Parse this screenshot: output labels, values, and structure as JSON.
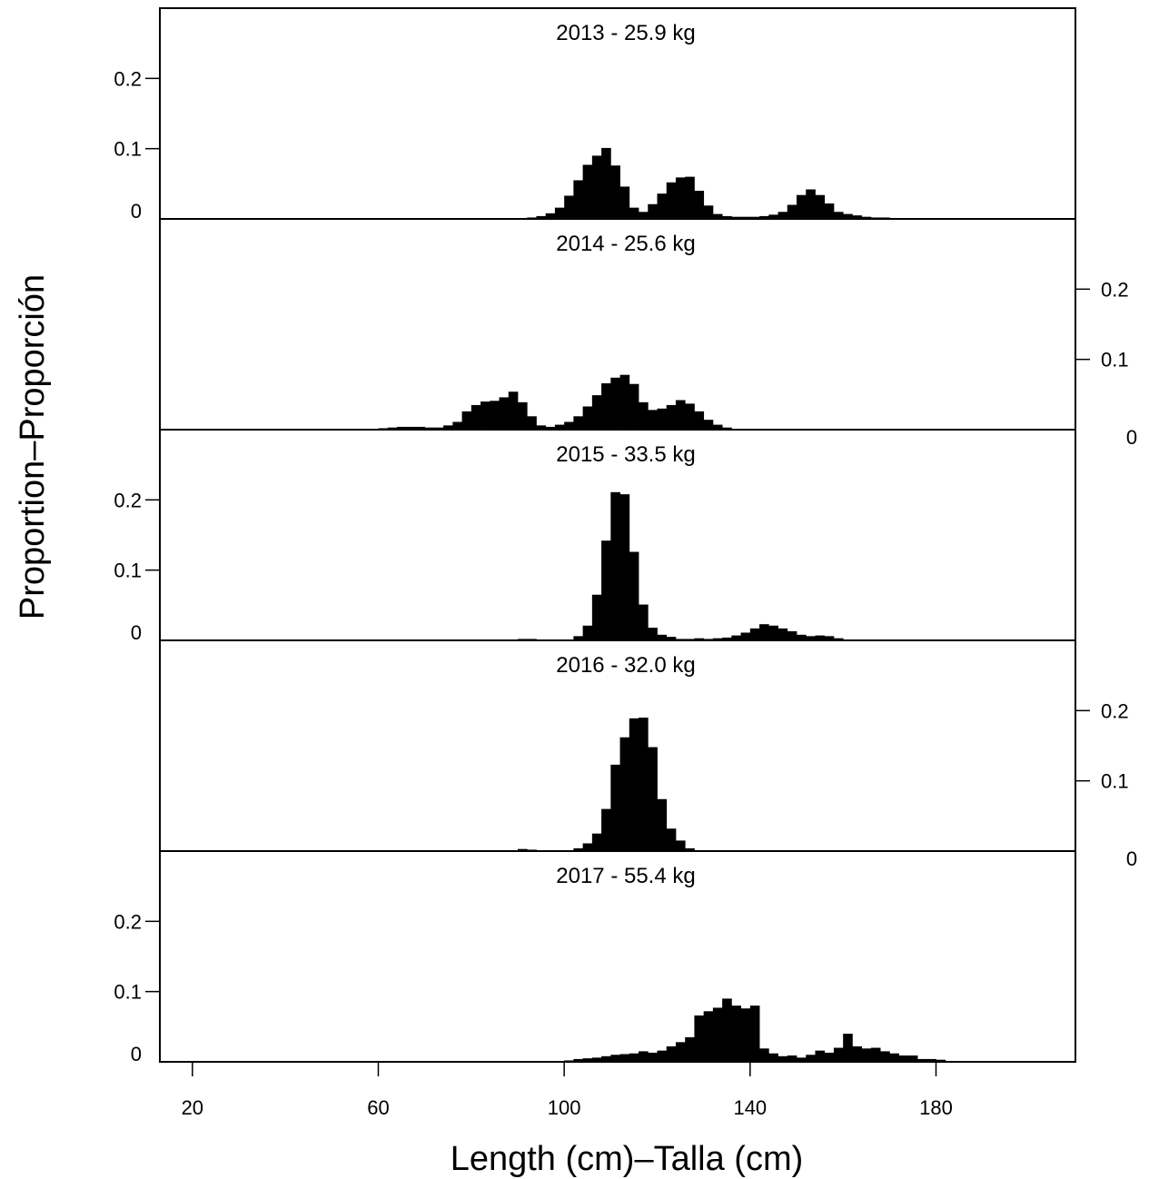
{
  "chart_data": {
    "type": "bar",
    "xlabel": "Length (cm)–Talla (cm)",
    "ylabel": "Proportion–Proporción",
    "xlim": [
      13,
      210
    ],
    "x_ticks": [
      20,
      60,
      100,
      140,
      180
    ],
    "ylim": [
      0,
      0.3
    ],
    "y_ticks": [
      0,
      0.1,
      0.2
    ],
    "bin_width": 2,
    "bin_start": 20,
    "panels": [
      {
        "title": "2013 - 25.9 kg",
        "y_axis_side": "left",
        "values": [
          0.001,
          0.001,
          0.001,
          0.001,
          0.001,
          0.001,
          0.001,
          0.001,
          0.001,
          0.001,
          0.001,
          0.001,
          0.001,
          0.001,
          0.001,
          0.001,
          0.001,
          0.001,
          0.001,
          0.001,
          0.001,
          0.001,
          0.001,
          0.001,
          0.001,
          0.001,
          0.001,
          0.001,
          0.001,
          0.001,
          0.001,
          0.001,
          0.001,
          0.001,
          0.001,
          0.001,
          0.002,
          0.004,
          0.008,
          0.016,
          0.033,
          0.055,
          0.077,
          0.09,
          0.101,
          0.076,
          0.046,
          0.016,
          0.01,
          0.021,
          0.036,
          0.052,
          0.059,
          0.06,
          0.04,
          0.019,
          0.007,
          0.004,
          0.003,
          0.003,
          0.003,
          0.004,
          0.006,
          0.01,
          0.02,
          0.034,
          0.042,
          0.034,
          0.022,
          0.01,
          0.007,
          0.005,
          0.003,
          0.002,
          0.002,
          0.001,
          0.001,
          0.001,
          0.001,
          0.001,
          0.001,
          0.001,
          0.001,
          0.001,
          0.001,
          0.001,
          0.001,
          0.001,
          0.001,
          0.001,
          0.001
        ]
      },
      {
        "title": "2014 - 25.6 kg",
        "y_axis_side": "right",
        "values": [
          0.001,
          0.001,
          0.001,
          0.001,
          0.001,
          0.001,
          0.001,
          0.001,
          0.001,
          0.001,
          0.001,
          0.001,
          0.001,
          0.001,
          0.001,
          0.001,
          0.001,
          0.001,
          0.001,
          0.001,
          0.002,
          0.003,
          0.004,
          0.004,
          0.004,
          0.003,
          0.003,
          0.006,
          0.011,
          0.026,
          0.035,
          0.04,
          0.041,
          0.046,
          0.054,
          0.039,
          0.019,
          0.006,
          0.004,
          0.007,
          0.011,
          0.019,
          0.033,
          0.049,
          0.066,
          0.074,
          0.078,
          0.065,
          0.039,
          0.028,
          0.03,
          0.035,
          0.042,
          0.037,
          0.026,
          0.014,
          0.007,
          0.003,
          0.001,
          0.001,
          0.001,
          0.001,
          0.001,
          0.001,
          0.001,
          0.001,
          0.001,
          0.001,
          0.001,
          0.001,
          0.001,
          0.001,
          0.001,
          0.001,
          0.001,
          0.001,
          0.001,
          0.001,
          0.001,
          0.001,
          0.001,
          0.001,
          0.001,
          0.001,
          0.001,
          0.001,
          0.001,
          0.001,
          0.001,
          0.001,
          0.001
        ]
      },
      {
        "title": "2015 - 33.5 kg",
        "y_axis_side": "left",
        "values": [
          0.001,
          0.001,
          0.001,
          0.001,
          0.001,
          0.001,
          0.001,
          0.001,
          0.001,
          0.001,
          0.001,
          0.001,
          0.001,
          0.001,
          0.001,
          0.001,
          0.001,
          0.001,
          0.001,
          0.001,
          0.001,
          0.001,
          0.001,
          0.001,
          0.001,
          0.001,
          0.001,
          0.001,
          0.001,
          0.001,
          0.001,
          0.001,
          0.001,
          0.001,
          0.001,
          0.002,
          0.002,
          0.001,
          0.001,
          0.001,
          0.001,
          0.006,
          0.021,
          0.065,
          0.142,
          0.211,
          0.208,
          0.126,
          0.051,
          0.018,
          0.008,
          0.005,
          0.002,
          0.002,
          0.003,
          0.002,
          0.003,
          0.004,
          0.007,
          0.011,
          0.017,
          0.023,
          0.021,
          0.017,
          0.013,
          0.008,
          0.006,
          0.007,
          0.006,
          0.003,
          0.001,
          0.001,
          0.001,
          0.001,
          0.001,
          0.001,
          0.001,
          0.001,
          0.001,
          0.001,
          0.001,
          0.001,
          0.001,
          0.001,
          0.001,
          0.001,
          0.001,
          0.001,
          0.001,
          0.001,
          0.001
        ]
      },
      {
        "title": "2016 - 32.0 kg",
        "y_axis_side": "right",
        "values": [
          0.001,
          0.001,
          0.001,
          0.001,
          0.001,
          0.001,
          0.001,
          0.001,
          0.001,
          0.001,
          0.001,
          0.001,
          0.001,
          0.001,
          0.001,
          0.001,
          0.001,
          0.001,
          0.001,
          0.001,
          0.001,
          0.001,
          0.001,
          0.001,
          0.001,
          0.001,
          0.001,
          0.001,
          0.001,
          0.001,
          0.001,
          0.001,
          0.001,
          0.001,
          0.001,
          0.003,
          0.002,
          0.001,
          0.001,
          0.001,
          0.001,
          0.004,
          0.011,
          0.025,
          0.06,
          0.123,
          0.162,
          0.189,
          0.19,
          0.148,
          0.074,
          0.032,
          0.015,
          0.004,
          0.001,
          0.001,
          0.001,
          0.001,
          0.001,
          0.001,
          0.001,
          0.001,
          0.001,
          0.001,
          0.001,
          0.001,
          0.001,
          0.001,
          0.001,
          0.001,
          0.001,
          0.001,
          0.001,
          0.001,
          0.001,
          0.001,
          0.001,
          0.001,
          0.001,
          0.001,
          0.001,
          0.001,
          0.001,
          0.001,
          0.001,
          0.001,
          0.001,
          0.001,
          0.001,
          0.001,
          0.001
        ]
      },
      {
        "title": "2017 - 55.4 kg",
        "y_axis_side": "left",
        "values": [
          0.001,
          0.001,
          0.001,
          0.001,
          0.001,
          0.001,
          0.001,
          0.001,
          0.001,
          0.001,
          0.001,
          0.001,
          0.001,
          0.001,
          0.001,
          0.001,
          0.001,
          0.001,
          0.001,
          0.001,
          0.001,
          0.001,
          0.001,
          0.001,
          0.001,
          0.001,
          0.001,
          0.001,
          0.001,
          0.001,
          0.001,
          0.001,
          0.001,
          0.001,
          0.001,
          0.001,
          0.001,
          0.001,
          0.001,
          0.001,
          0.002,
          0.004,
          0.005,
          0.006,
          0.008,
          0.01,
          0.011,
          0.012,
          0.015,
          0.013,
          0.016,
          0.022,
          0.028,
          0.035,
          0.066,
          0.072,
          0.077,
          0.09,
          0.08,
          0.076,
          0.08,
          0.019,
          0.012,
          0.008,
          0.009,
          0.006,
          0.01,
          0.016,
          0.013,
          0.02,
          0.04,
          0.022,
          0.019,
          0.02,
          0.015,
          0.012,
          0.009,
          0.009,
          0.004,
          0.004,
          0.003,
          0.001,
          0.001,
          0.001,
          0.001,
          0.001,
          0.001,
          0.001,
          0.001,
          0.001,
          0.001
        ]
      }
    ],
    "grid": false,
    "legend": "none"
  }
}
